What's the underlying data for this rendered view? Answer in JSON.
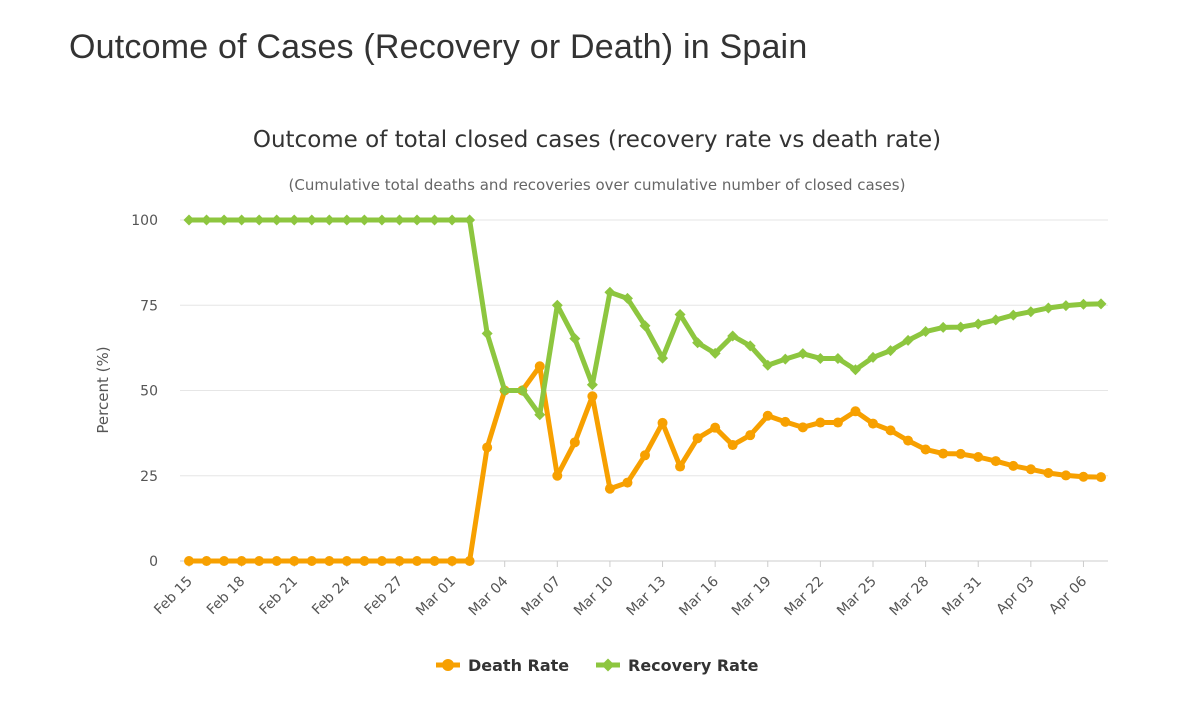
{
  "page": {
    "heading": "Outcome of Cases (Recovery or Death) in Spain"
  },
  "chart_data": {
    "type": "line",
    "title": "Outcome of total closed cases (recovery rate vs death rate)",
    "subtitle": "(Cumulative total deaths and recoveries over cumulative number of closed cases)",
    "xlabel": "",
    "ylabel": "Percent (%)",
    "ylim": [
      0,
      100
    ],
    "yticks": [
      0,
      25,
      50,
      75,
      100
    ],
    "grid": true,
    "legend_position": "bottom-center",
    "x": [
      "Feb 15",
      "Feb 16",
      "Feb 17",
      "Feb 18",
      "Feb 19",
      "Feb 20",
      "Feb 21",
      "Feb 22",
      "Feb 23",
      "Feb 24",
      "Feb 25",
      "Feb 26",
      "Feb 27",
      "Feb 28",
      "Feb 29",
      "Mar 01",
      "Mar 02",
      "Mar 03",
      "Mar 04",
      "Mar 05",
      "Mar 06",
      "Mar 07",
      "Mar 08",
      "Mar 09",
      "Mar 10",
      "Mar 11",
      "Mar 12",
      "Mar 13",
      "Mar 14",
      "Mar 15",
      "Mar 16",
      "Mar 17",
      "Mar 18",
      "Mar 19",
      "Mar 20",
      "Mar 21",
      "Mar 22",
      "Mar 23",
      "Mar 24",
      "Mar 25",
      "Mar 26",
      "Mar 27",
      "Mar 28",
      "Mar 29",
      "Mar 30",
      "Mar 31",
      "Apr 01",
      "Apr 02",
      "Apr 03",
      "Apr 04",
      "Apr 05",
      "Apr 06",
      "Apr 07"
    ],
    "x_tick_labels": [
      "Feb 15",
      "Feb 18",
      "Feb 21",
      "Feb 24",
      "Feb 27",
      "Mar 01",
      "Mar 04",
      "Mar 07",
      "Mar 10",
      "Mar 13",
      "Mar 16",
      "Mar 19",
      "Mar 22",
      "Mar 25",
      "Mar 28",
      "Mar 31",
      "Apr 03",
      "Apr 06"
    ],
    "series": [
      {
        "name": "Death Rate",
        "color": "#f7a000",
        "marker": "circle",
        "values": [
          0,
          0,
          0,
          0,
          0,
          0,
          0,
          0,
          0,
          0,
          0,
          0,
          0,
          0,
          0,
          0,
          0,
          33.3,
          50,
          50,
          57.1,
          25,
          34.8,
          48.3,
          21.2,
          23,
          31,
          40.5,
          27.7,
          36,
          39.1,
          34,
          36.9,
          42.6,
          40.8,
          39.2,
          40.6,
          40.6,
          43.9,
          40.3,
          38.3,
          35.3,
          32.7,
          31.5,
          31.4,
          30.5,
          29.3,
          27.9,
          26.9,
          25.8,
          25.1,
          24.7,
          24.6
        ]
      },
      {
        "name": "Recovery Rate",
        "color": "#8dc63f",
        "marker": "diamond",
        "values": [
          100,
          100,
          100,
          100,
          100,
          100,
          100,
          100,
          100,
          100,
          100,
          100,
          100,
          100,
          100,
          100,
          100,
          66.7,
          50,
          50,
          42.9,
          75,
          65.2,
          51.7,
          78.8,
          77,
          69,
          59.5,
          72.3,
          64,
          60.9,
          66,
          63.1,
          57.4,
          59.2,
          60.8,
          59.4,
          59.4,
          56.1,
          59.7,
          61.7,
          64.7,
          67.3,
          68.5,
          68.6,
          69.5,
          70.7,
          72.1,
          73.1,
          74.2,
          74.9,
          75.3,
          75.4
        ]
      }
    ]
  }
}
